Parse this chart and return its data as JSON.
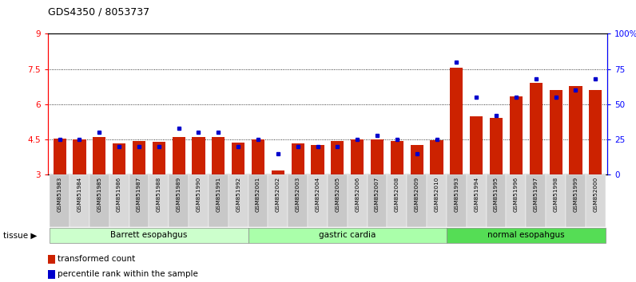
{
  "title": "GDS4350 / 8053737",
  "samples": [
    "GSM851983",
    "GSM851984",
    "GSM851985",
    "GSM851986",
    "GSM851987",
    "GSM851988",
    "GSM851989",
    "GSM851990",
    "GSM851991",
    "GSM851992",
    "GSM852001",
    "GSM852002",
    "GSM852003",
    "GSM852004",
    "GSM852005",
    "GSM852006",
    "GSM852007",
    "GSM852008",
    "GSM852009",
    "GSM852010",
    "GSM851993",
    "GSM851994",
    "GSM851995",
    "GSM851996",
    "GSM851997",
    "GSM851998",
    "GSM851999",
    "GSM852000"
  ],
  "red_values": [
    4.55,
    4.5,
    4.6,
    4.35,
    4.43,
    4.42,
    4.62,
    4.6,
    4.62,
    4.38,
    4.5,
    3.2,
    4.35,
    4.28,
    4.43,
    4.5,
    4.5,
    4.45,
    4.27,
    4.48,
    7.55,
    5.5,
    5.42,
    6.35,
    6.92,
    6.62,
    6.78,
    6.62
  ],
  "blue_values": [
    25,
    25,
    30,
    20,
    20,
    20,
    33,
    30,
    30,
    20,
    25,
    15,
    20,
    20,
    20,
    25,
    28,
    25,
    15,
    25,
    80,
    55,
    42,
    55,
    68,
    55,
    60,
    68
  ],
  "groups": [
    {
      "label": "Barrett esopahgus",
      "start": 0,
      "end": 10
    },
    {
      "label": "gastric cardia",
      "start": 10,
      "end": 20
    },
    {
      "label": "normal esopahgus",
      "start": 20,
      "end": 28
    }
  ],
  "group_colors": [
    "#ccffcc",
    "#aaffaa",
    "#55dd55"
  ],
  "ymin": 3.0,
  "ymax": 9.0,
  "yticks": [
    3,
    4.5,
    6,
    7.5,
    9
  ],
  "ytick_labels": [
    "3",
    "4.5",
    "6",
    "7.5",
    "9"
  ],
  "y2ticks": [
    0,
    25,
    50,
    75,
    100
  ],
  "y2tick_labels": [
    "0",
    "25",
    "50",
    "75",
    "100%"
  ],
  "grid_lines": [
    4.5,
    6.0,
    7.5
  ],
  "bar_color": "#cc2200",
  "dot_color": "#0000cc",
  "bar_width": 0.65,
  "legend_items": [
    "transformed count",
    "percentile rank within the sample"
  ],
  "tissue_label": "tissue"
}
